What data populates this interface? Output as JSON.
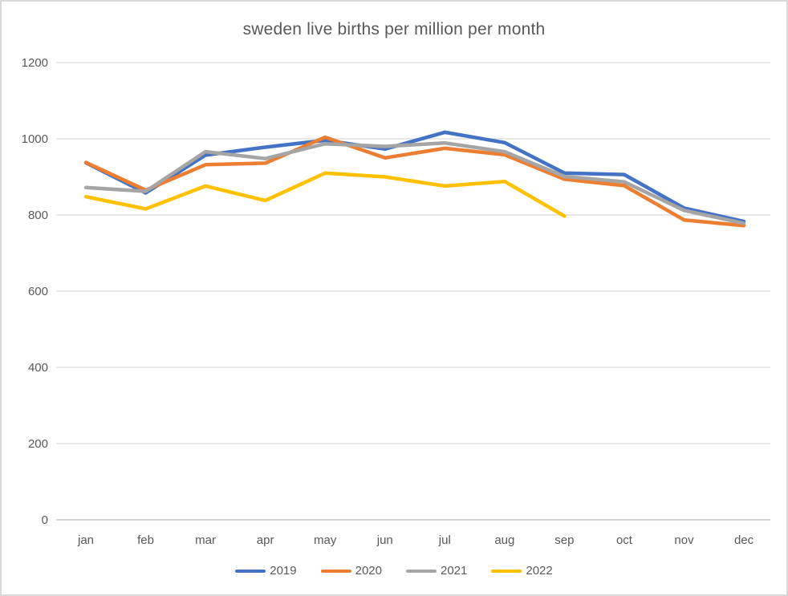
{
  "window": {
    "background": "#ffffff",
    "border_color": "#d9d9d9"
  },
  "chart_data": {
    "type": "line",
    "title": "sweden live births per million per month",
    "categories": [
      "jan",
      "feb",
      "mar",
      "apr",
      "may",
      "jun",
      "jul",
      "aug",
      "sep",
      "oct",
      "nov",
      "dec"
    ],
    "series": [
      {
        "name": "2019",
        "color": "#4472C4",
        "values": [
          937,
          858,
          957,
          978,
          996,
          973,
          1017,
          990,
          910,
          906,
          818,
          783
        ]
      },
      {
        "name": "2020",
        "color": "#ED7D31",
        "values": [
          938,
          865,
          932,
          936,
          1004,
          950,
          975,
          958,
          894,
          877,
          787,
          772
        ]
      },
      {
        "name": "2021",
        "color": "#A5A5A5",
        "values": [
          872,
          862,
          966,
          948,
          987,
          980,
          989,
          966,
          901,
          887,
          812,
          778
        ]
      },
      {
        "name": "2022",
        "color": "#FFC000",
        "values": [
          848,
          816,
          876,
          838,
          910,
          900,
          876,
          888,
          797,
          null,
          null,
          null
        ]
      }
    ],
    "ylim": [
      0,
      1200
    ],
    "yticks": [
      0,
      200,
      400,
      600,
      800,
      1000,
      1200
    ],
    "grid": true,
    "grid_color": "#d9d9d9",
    "axis_line_color": "#c0c0c0",
    "axis_label_color": "#595959",
    "legend_position": "bottom"
  }
}
